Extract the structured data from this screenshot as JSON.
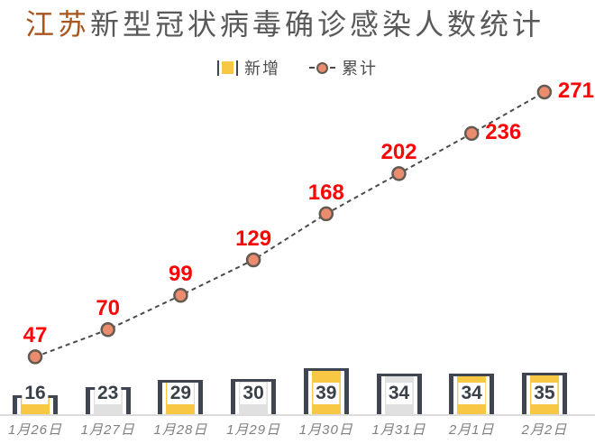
{
  "title": {
    "highlight": "江苏",
    "rest": "新型冠状病毒确诊感染人数统计"
  },
  "legend": {
    "items": [
      {
        "label": "新增",
        "type": "bar"
      },
      {
        "label": "累计",
        "type": "line"
      }
    ]
  },
  "chart_data": {
    "type": "bar+line combo",
    "title": "江苏新型冠状病毒确诊感染人数统计",
    "categories": [
      "1月26日",
      "1月27日",
      "1月28日",
      "1月29日",
      "1月30日",
      "1月31日",
      "2月1日",
      "2月2日"
    ],
    "series": [
      {
        "name": "新增",
        "type": "bar",
        "values": [
          16,
          23,
          29,
          30,
          39,
          34,
          34,
          35
        ],
        "fill_pattern": [
          "yellow",
          "gray",
          "yellow",
          "gray",
          "yellow",
          "gray",
          "yellow",
          "yellow"
        ]
      },
      {
        "name": "累计",
        "type": "line",
        "values": [
          47,
          70,
          99,
          129,
          168,
          202,
          236,
          271
        ],
        "line_style": "dashed",
        "marker": "circle"
      }
    ],
    "xlabel": "",
    "ylabel": "",
    "ylim": [
      0,
      280
    ],
    "grid": false,
    "legend_position": "top",
    "value_labels_shown": true,
    "colors": {
      "bar_yellow": "#F8C845",
      "bar_gray": "#E0E0E0",
      "bar_frame": "#3F4651",
      "bar_value_text": "#3A4049",
      "marker_fill": "#EC8C6E",
      "marker_stroke": "#635A52",
      "line": "#4A4A4A",
      "value_label_red": "#F90606",
      "axis_line": "#DCDCDC",
      "x_label_gray": "#7F7F7F",
      "title_highlight": "#A9561E",
      "title_text": "#595959"
    }
  }
}
